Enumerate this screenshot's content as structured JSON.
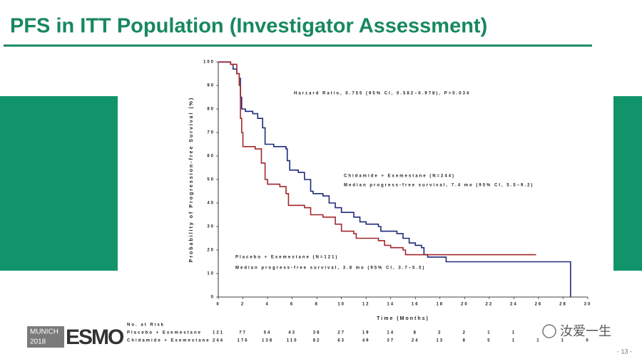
{
  "slide": {
    "title": "PFS in ITT Population (Investigator Assessment)",
    "page_number": "- 13 -",
    "logo_city": "MUNICH",
    "logo_year": "2018",
    "logo_brand": "ESMO",
    "watermark": "汝爱一生"
  },
  "chart_data": {
    "type": "step",
    "xlabel": "Time (Months)",
    "ylabel": "Probability of Progression-free Survival (%)",
    "xlim": [
      0,
      30
    ],
    "xticks": [
      0,
      2,
      4,
      6,
      8,
      10,
      12,
      14,
      16,
      18,
      20,
      22,
      24,
      26,
      28,
      30
    ],
    "ylim": [
      0,
      100
    ],
    "yticks": [
      0,
      10,
      20,
      30,
      40,
      50,
      60,
      70,
      80,
      90,
      100
    ],
    "series": [
      {
        "name": "Chidamide + Exemestane (N=244)",
        "color": "#1f2a7a",
        "x": [
          0,
          0.8,
          1,
          1.2,
          1.5,
          1.7,
          1.8,
          1.9,
          2.2,
          2.8,
          3.2,
          3.6,
          3.8,
          4.5,
          5.5,
          5.6,
          5.8,
          6.5,
          7,
          7.5,
          7.7,
          8.5,
          9,
          9.5,
          10,
          11,
          11.5,
          12,
          13,
          13.2,
          14.5,
          15,
          15.5,
          16,
          16.5,
          16.7,
          17,
          18.5,
          28.5,
          28.6
        ],
        "y": [
          100,
          100,
          99,
          97,
          95,
          93,
          85,
          80,
          79,
          78,
          76,
          72,
          65,
          64,
          63,
          58,
          54,
          53,
          50,
          45,
          44,
          43,
          40,
          38,
          36,
          34,
          32,
          31,
          30,
          28,
          27,
          25,
          23,
          22,
          21,
          18,
          17,
          15,
          15,
          0
        ]
      },
      {
        "name": "Placebo + Exemestane (N=121)",
        "color": "#a3262a",
        "x": [
          0,
          1,
          1.5,
          1.7,
          1.8,
          1.9,
          2,
          3,
          3.5,
          3.8,
          4,
          5,
          5.5,
          5.7,
          7,
          7.5,
          8.5,
          9.5,
          10,
          11,
          11.2,
          13,
          13.5,
          14,
          15,
          15.2,
          25.8
        ],
        "y": [
          100,
          99,
          95,
          90,
          76,
          70,
          64,
          63,
          57,
          50,
          48,
          47,
          44,
          39,
          38,
          35,
          34,
          31,
          28,
          27,
          25,
          24,
          22,
          21,
          20,
          18,
          18
        ]
      }
    ],
    "annotations": [
      "Harzard Ratio, 0.755 (95% CI, 0.582–0.978), P=0.034",
      "Chidamide + Exemestane (N=244)",
      "Median progress-free survival, 7.4 mo (95% CI, 5.5–9.2)",
      "Placebo + Exemestane (N=121)",
      "Median progress-free survival, 3.8 mo (95% CI, 3.7–5.5)"
    ],
    "at_risk": {
      "title": "No. at Risk",
      "rows": [
        {
          "name": "Placebo + Exemestane",
          "values": [
            121,
            77,
            54,
            43,
            38,
            27,
            19,
            14,
            8,
            2,
            2,
            1,
            1
          ]
        },
        {
          "name": "Chidamide + Exemestane",
          "values": [
            244,
            176,
            138,
            110,
            82,
            63,
            49,
            37,
            24,
            13,
            8,
            5,
            1,
            1,
            1,
            0
          ]
        }
      ]
    }
  }
}
